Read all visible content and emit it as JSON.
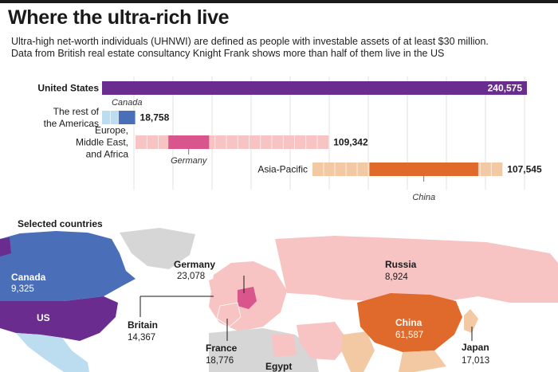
{
  "header": {
    "title": "Where the ultra-rich live",
    "subtitle_line1": "Ultra-high net-worth individuals (UHNWI) are defined as people with investable assets of at least $30 million.",
    "subtitle_line2": "Data from British real estate consultancy Knight Frank shows  more than half of them live in the US"
  },
  "colors": {
    "us": "#6a2c8e",
    "americas_light": "#bcdcf0",
    "americas_dark": "#4a6fb8",
    "europe_light": "#f7c3c3",
    "europe_dark": "#d9568c",
    "asia_light": "#f3c9a3",
    "asia_dark": "#e06a2c",
    "map_gray": "#d6d6d6"
  },
  "chart_data": {
    "type": "bar",
    "categories": [
      "United States",
      "The rest of the Americas",
      "Europe, Middle East, and Africa",
      "Asia-Pacific"
    ],
    "values": [
      240575,
      18758,
      109342,
      107545
    ],
    "value_labels": [
      "240,575",
      "18,758",
      "109,342",
      "107,545"
    ],
    "category_lines": [
      [
        "United States"
      ],
      [
        "The rest of",
        "the Americas"
      ],
      [
        "Europe,",
        "Middle East,",
        "and Africa"
      ],
      [
        "Asia-Pacific"
      ]
    ],
    "highlighted_countries": [
      {
        "name": "Canada",
        "region_index": 1,
        "value": 9325
      },
      {
        "name": "Germany",
        "region_index": 2,
        "value": 23078
      },
      {
        "name": "China",
        "region_index": 3,
        "value": 61587
      }
    ],
    "xlim": [
      0,
      240575
    ]
  },
  "map": {
    "heading": "Selected countries",
    "countries": [
      {
        "name": "Canada",
        "value": "9,325"
      },
      {
        "name": "US",
        "value": ""
      },
      {
        "name": "Germany",
        "value": "23,078"
      },
      {
        "name": "Russia",
        "value": "8,924"
      },
      {
        "name": "Britain",
        "value": "14,367"
      },
      {
        "name": "France",
        "value": "18,776"
      },
      {
        "name": "Egypt",
        "value": ""
      },
      {
        "name": "China",
        "value": "61,587"
      },
      {
        "name": "Japan",
        "value": "17,013"
      }
    ]
  }
}
